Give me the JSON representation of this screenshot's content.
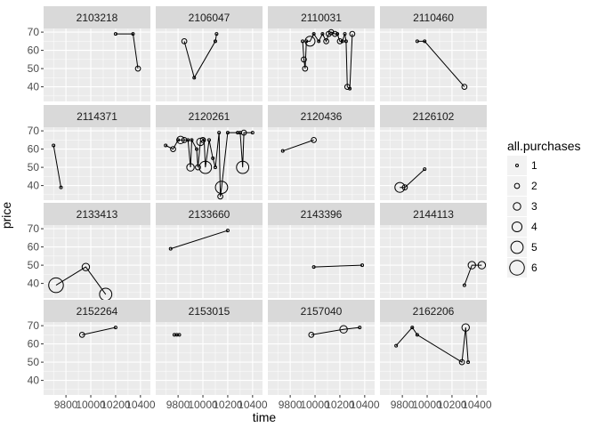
{
  "chart_data": {
    "type": "scatter",
    "xlabel": "time",
    "ylabel": "price",
    "xlim": [
      9620,
      10480
    ],
    "ylim": [
      32,
      72
    ],
    "x_ticks": [
      9800,
      10000,
      10200,
      10400
    ],
    "x_tick_labels": [
      "9800",
      "10000",
      "10200",
      "10400"
    ],
    "y_ticks": [
      40,
      50,
      60,
      70
    ],
    "y_tick_labels": [
      "40",
      "50",
      "60",
      "70"
    ],
    "grid": true,
    "facet_ncol": 4,
    "legend": {
      "title": "all.purchases",
      "position": "right",
      "sizes": [
        1,
        2,
        3,
        4,
        5,
        6
      ],
      "labels": [
        "1",
        "2",
        "3",
        "4",
        "5",
        "6"
      ]
    },
    "facets": [
      {
        "id": "2103218",
        "points": [
          [
            10200,
            69,
            1
          ],
          [
            10340,
            69,
            1
          ],
          [
            10380,
            50,
            2
          ]
        ]
      },
      {
        "id": "2106047",
        "points": [
          [
            9850,
            65,
            2
          ],
          [
            9930,
            45,
            1
          ],
          [
            10100,
            65,
            1
          ],
          [
            10110,
            69,
            1
          ]
        ]
      },
      {
        "id": "2110031",
        "points": [
          [
            9900,
            65,
            1
          ],
          [
            9910,
            55,
            2
          ],
          [
            9920,
            50,
            2
          ],
          [
            9930,
            65,
            1
          ],
          [
            9960,
            65,
            4
          ],
          [
            9990,
            69,
            1
          ],
          [
            10030,
            65,
            1
          ],
          [
            10060,
            69,
            1
          ],
          [
            10090,
            65,
            2
          ],
          [
            10110,
            69,
            2
          ],
          [
            10130,
            70,
            2
          ],
          [
            10160,
            69,
            2
          ],
          [
            10180,
            69,
            1
          ],
          [
            10200,
            65,
            2
          ],
          [
            10220,
            65,
            1
          ],
          [
            10240,
            69,
            1
          ],
          [
            10250,
            65,
            1
          ],
          [
            10260,
            40,
            2
          ],
          [
            10280,
            39,
            1
          ],
          [
            10300,
            69,
            2
          ]
        ]
      },
      {
        "id": "2110460",
        "points": [
          [
            9920,
            65,
            1
          ],
          [
            9980,
            65,
            1
          ],
          [
            10300,
            40,
            2
          ]
        ]
      },
      {
        "id": "2114371",
        "points": [
          [
            9700,
            62,
            1
          ],
          [
            9760,
            39,
            1
          ]
        ]
      },
      {
        "id": "2120261",
        "points": [
          [
            9700,
            62,
            1
          ],
          [
            9760,
            60,
            2
          ],
          [
            9800,
            65,
            1
          ],
          [
            9820,
            65,
            3
          ],
          [
            9850,
            65,
            2
          ],
          [
            9880,
            65,
            1
          ],
          [
            9900,
            50,
            3
          ],
          [
            9910,
            65,
            1
          ],
          [
            9950,
            60,
            1
          ],
          [
            9960,
            50,
            2
          ],
          [
            9980,
            64,
            3
          ],
          [
            10000,
            65,
            2
          ],
          [
            10010,
            65,
            1
          ],
          [
            10020,
            50,
            5
          ],
          [
            10050,
            65,
            1
          ],
          [
            10080,
            55,
            1
          ],
          [
            10100,
            50,
            1
          ],
          [
            10130,
            69,
            1
          ],
          [
            10140,
            34,
            2
          ],
          [
            10150,
            39,
            5
          ],
          [
            10200,
            69,
            1
          ],
          [
            10280,
            69,
            1
          ],
          [
            10300,
            69,
            1
          ],
          [
            10320,
            50,
            5
          ],
          [
            10330,
            69,
            2
          ],
          [
            10400,
            69,
            1
          ]
        ]
      },
      {
        "id": "2120436",
        "points": [
          [
            9740,
            59,
            1
          ],
          [
            9990,
            65,
            2
          ]
        ]
      },
      {
        "id": "2126102",
        "points": [
          [
            9780,
            39,
            4
          ],
          [
            9820,
            39,
            2
          ],
          [
            9980,
            49,
            1
          ]
        ]
      },
      {
        "id": "2133413",
        "points": [
          [
            9720,
            39,
            6
          ],
          [
            9960,
            49,
            3
          ],
          [
            10120,
            34,
            5
          ]
        ]
      },
      {
        "id": "2133660",
        "points": [
          [
            9740,
            59,
            1
          ],
          [
            10200,
            69,
            1
          ]
        ]
      },
      {
        "id": "2143396",
        "points": [
          [
            9990,
            49,
            1
          ],
          [
            10380,
            50,
            1
          ]
        ]
      },
      {
        "id": "2144113",
        "points": [
          [
            10300,
            39,
            1
          ],
          [
            10360,
            50,
            3
          ],
          [
            10440,
            50,
            3
          ]
        ]
      },
      {
        "id": "2152264",
        "points": [
          [
            9930,
            65,
            2
          ],
          [
            10200,
            69,
            1
          ]
        ]
      },
      {
        "id": "2153015",
        "points": [
          [
            9770,
            65,
            1
          ],
          [
            9790,
            65,
            1
          ],
          [
            9810,
            65,
            1
          ]
        ]
      },
      {
        "id": "2157040",
        "points": [
          [
            9970,
            65,
            2
          ],
          [
            10230,
            68,
            3
          ],
          [
            10360,
            69,
            1
          ]
        ]
      },
      {
        "id": "2162206",
        "points": [
          [
            9750,
            59,
            1
          ],
          [
            9880,
            69,
            1
          ],
          [
            9920,
            65,
            1
          ],
          [
            10280,
            50,
            2
          ],
          [
            10310,
            69,
            3
          ],
          [
            10330,
            50,
            1
          ]
        ]
      }
    ]
  },
  "colors": {
    "panel_background": "#ebebeb",
    "grid_major": "#ffffff",
    "strip_background": "#d9d9d9",
    "point_stroke": "#000000",
    "line": "#000000"
  }
}
